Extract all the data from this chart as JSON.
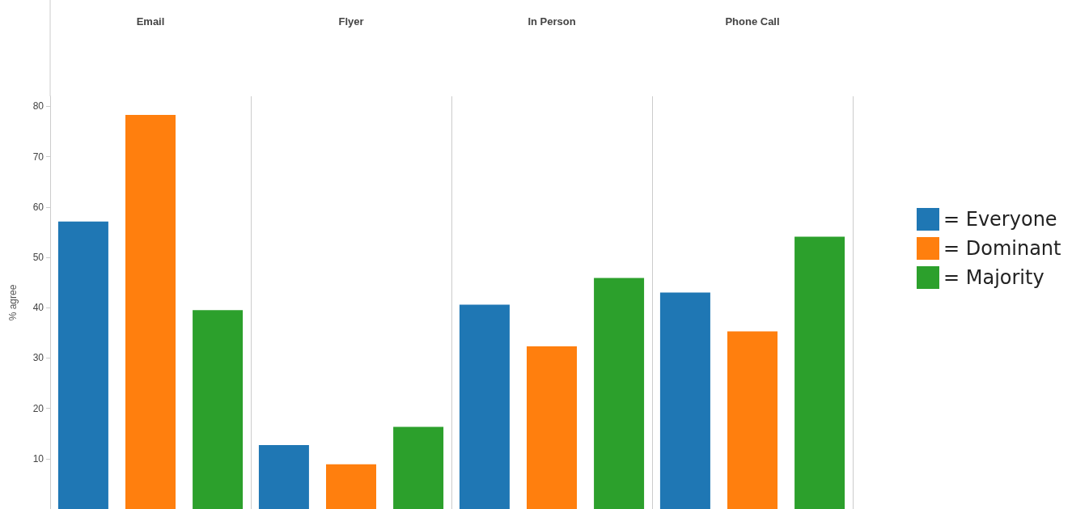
{
  "chart_data": {
    "type": "bar",
    "ylabel": "% agree",
    "categories": [
      "Email",
      "Flyer",
      "In Person",
      "Phone Call"
    ],
    "series": [
      {
        "name": "= Everyone",
        "color": "#1f77b4",
        "values": [
          57.1,
          12.7,
          40.6,
          43.0
        ]
      },
      {
        "name": "= Dominant",
        "color": "#ff7f0e",
        "values": [
          78.3,
          8.9,
          32.3,
          35.3
        ]
      },
      {
        "name": "= Majority",
        "color": "#2ca02c",
        "values": [
          39.5,
          16.3,
          45.9,
          54.1
        ]
      }
    ],
    "ylim": [
      0,
      82
    ],
    "yticks": [
      10,
      20,
      30,
      40,
      50,
      60,
      70,
      80
    ],
    "grid": "x",
    "legend": "right"
  }
}
